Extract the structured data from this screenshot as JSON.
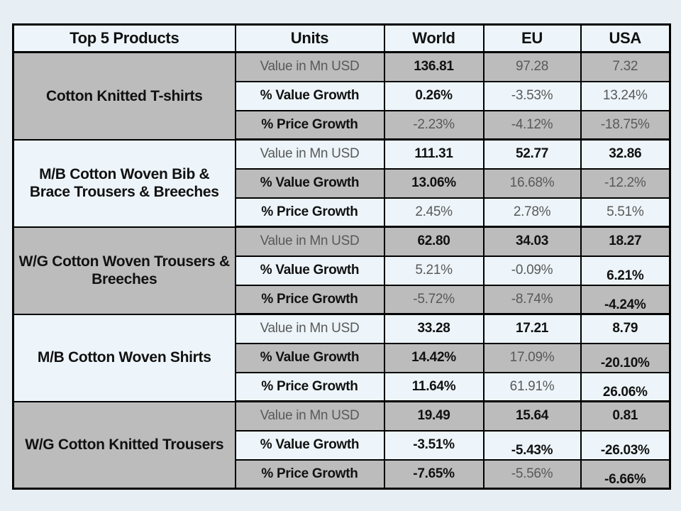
{
  "colors": {
    "page_bg": "#e7eef4",
    "light_fill": "#edf5fa",
    "gray_fill": "#bcbcbc",
    "border": "#000000",
    "gray_text": "#595959",
    "black_text": "#111111"
  },
  "table": {
    "header": {
      "products": "Top 5 Products",
      "units": "Units",
      "regions": [
        "World",
        "EU",
        "USA"
      ]
    },
    "groups": [
      {
        "product": "Cotton Knitted  T-shirts",
        "fill": "gray",
        "rows": [
          {
            "label": "Value in Mn USD",
            "label_color": "gray",
            "fill": "gray",
            "values": [
              {
                "text": "136.81",
                "style": "bold"
              },
              {
                "text": "97.28",
                "style": "gray"
              },
              {
                "text": "7.32",
                "style": "gray"
              }
            ]
          },
          {
            "label": "% Value Growth",
            "label_color": "black",
            "fill": "light",
            "values": [
              {
                "text": "0.26%",
                "style": "bold"
              },
              {
                "text": "-3.53%",
                "style": "gray"
              },
              {
                "text": "13.24%",
                "style": "gray"
              }
            ]
          },
          {
            "label": "% Price Growth",
            "label_color": "black",
            "fill": "gray",
            "values": [
              {
                "text": "-2.23%",
                "style": "gray"
              },
              {
                "text": "-4.12%",
                "style": "gray"
              },
              {
                "text": "-18.75%",
                "style": "gray"
              }
            ]
          }
        ]
      },
      {
        "product": "M/B Cotton Woven Bib & Brace Trousers & Breeches",
        "fill": "light",
        "rows": [
          {
            "label": "Value in Mn USD",
            "label_color": "gray",
            "fill": "light",
            "values": [
              {
                "text": "111.31",
                "style": "bold"
              },
              {
                "text": "52.77",
                "style": "bold"
              },
              {
                "text": "32.86",
                "style": "bold"
              }
            ]
          },
          {
            "label": "% Value Growth",
            "label_color": "black",
            "fill": "gray",
            "values": [
              {
                "text": "13.06%",
                "style": "bold"
              },
              {
                "text": "16.68%",
                "style": "gray"
              },
              {
                "text": "-12.2%",
                "style": "gray"
              }
            ]
          },
          {
            "label": "% Price Growth",
            "label_color": "black",
            "fill": "light",
            "values": [
              {
                "text": "2.45%",
                "style": "gray"
              },
              {
                "text": "2.78%",
                "style": "gray"
              },
              {
                "text": "5.51%",
                "style": "gray"
              }
            ]
          }
        ]
      },
      {
        "product": "W/G Cotton Woven Trousers & Breeches",
        "fill": "gray",
        "rows": [
          {
            "label": "Value in Mn USD",
            "label_color": "gray",
            "fill": "gray",
            "values": [
              {
                "text": "62.80",
                "style": "bold"
              },
              {
                "text": "34.03",
                "style": "bold"
              },
              {
                "text": "18.27",
                "style": "bold"
              }
            ]
          },
          {
            "label": "% Value Growth",
            "label_color": "black",
            "fill": "light",
            "values": [
              {
                "text": "5.21%",
                "style": "gray"
              },
              {
                "text": "-0.09%",
                "style": "gray"
              },
              {
                "text": "6.21%",
                "style": "bold shift"
              }
            ]
          },
          {
            "label": "% Price Growth",
            "label_color": "black",
            "fill": "gray",
            "values": [
              {
                "text": "-5.72%",
                "style": "gray"
              },
              {
                "text": "-8.74%",
                "style": "gray"
              },
              {
                "text": "-4.24%",
                "style": "bold shift"
              }
            ]
          }
        ]
      },
      {
        "product": "M/B Cotton Woven  Shirts",
        "fill": "light",
        "rows": [
          {
            "label": "Value in Mn USD",
            "label_color": "gray",
            "fill": "light",
            "values": [
              {
                "text": "33.28",
                "style": "bold"
              },
              {
                "text": "17.21",
                "style": "bold"
              },
              {
                "text": "8.79",
                "style": "bold"
              }
            ]
          },
          {
            "label": "% Value Growth",
            "label_color": "black",
            "fill": "gray",
            "values": [
              {
                "text": "14.42%",
                "style": "bold"
              },
              {
                "text": "17.09%",
                "style": "gray"
              },
              {
                "text": "-20.10%",
                "style": "bold shift"
              }
            ]
          },
          {
            "label": "% Price Growth",
            "label_color": "black",
            "fill": "light",
            "values": [
              {
                "text": "11.64%",
                "style": "bold"
              },
              {
                "text": "61.91%",
                "style": "gray"
              },
              {
                "text": "26.06%",
                "style": "bold shift"
              }
            ]
          }
        ]
      },
      {
        "product": "W/G Cotton Knitted Trousers",
        "fill": "gray",
        "rows": [
          {
            "label": "Value in Mn USD",
            "label_color": "gray",
            "fill": "gray",
            "values": [
              {
                "text": "19.49",
                "style": "bold"
              },
              {
                "text": "15.64",
                "style": "bold"
              },
              {
                "text": "0.81",
                "style": "bold"
              }
            ]
          },
          {
            "label": "% Value Growth",
            "label_color": "black",
            "fill": "light",
            "values": [
              {
                "text": "-3.51%",
                "style": "bold"
              },
              {
                "text": "-5.43%",
                "style": "bold shift"
              },
              {
                "text": "-26.03%",
                "style": "bold shift"
              }
            ]
          },
          {
            "label": "% Price Growth",
            "label_color": "black",
            "fill": "gray",
            "values": [
              {
                "text": "-7.65%",
                "style": "bold"
              },
              {
                "text": "-5.56%",
                "style": "gray"
              },
              {
                "text": "-6.66%",
                "style": "bold shift"
              }
            ]
          }
        ]
      }
    ]
  }
}
